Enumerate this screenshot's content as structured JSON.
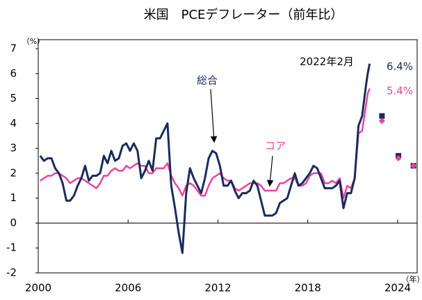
{
  "chart_data": {
    "type": "line",
    "title": "米国　PCEデフレーター（前年比）",
    "y_unit": "（%）",
    "x_unit": "（年）",
    "annotation": "2022年2月",
    "xlim": [
      2000,
      2025.3
    ],
    "xticks": [
      2000,
      2006,
      2012,
      2018,
      2024
    ],
    "ylim": [
      -2,
      7
    ],
    "yticks": [
      -2,
      -1,
      0,
      1,
      2,
      3,
      4,
      5,
      6,
      7
    ],
    "x": [
      2000.13,
      2000.38,
      2000.63,
      2000.88,
      2001.13,
      2001.38,
      2001.63,
      2001.88,
      2002.13,
      2002.38,
      2002.63,
      2002.88,
      2003.13,
      2003.38,
      2003.63,
      2003.88,
      2004.13,
      2004.38,
      2004.63,
      2004.88,
      2005.13,
      2005.38,
      2005.63,
      2005.88,
      2006.13,
      2006.38,
      2006.63,
      2006.88,
      2007.13,
      2007.38,
      2007.63,
      2007.88,
      2008.13,
      2008.38,
      2008.63,
      2008.88,
      2009.13,
      2009.38,
      2009.63,
      2009.88,
      2010.13,
      2010.38,
      2010.63,
      2010.88,
      2011.13,
      2011.38,
      2011.63,
      2011.88,
      2012.13,
      2012.38,
      2012.63,
      2012.88,
      2013.13,
      2013.38,
      2013.63,
      2013.88,
      2014.13,
      2014.38,
      2014.63,
      2014.88,
      2015.13,
      2015.38,
      2015.63,
      2015.88,
      2016.13,
      2016.38,
      2016.63,
      2016.88,
      2017.13,
      2017.38,
      2017.63,
      2017.88,
      2018.13,
      2018.38,
      2018.63,
      2018.88,
      2019.13,
      2019.38,
      2019.63,
      2019.88,
      2020.13,
      2020.38,
      2020.63,
      2020.88,
      2021.13,
      2021.38,
      2021.63,
      2021.88,
      2022.0,
      2022.13
    ],
    "series": [
      {
        "name": "総合",
        "color": "#1b2a5e",
        "end_label": "6.4%",
        "values": [
          2.7,
          2.5,
          2.6,
          2.6,
          2.2,
          2.0,
          1.6,
          0.9,
          0.9,
          1.1,
          1.5,
          1.8,
          2.3,
          1.7,
          1.9,
          1.9,
          2.0,
          2.7,
          2.4,
          2.9,
          2.5,
          2.6,
          3.1,
          3.2,
          2.9,
          3.2,
          2.9,
          1.8,
          2.1,
          2.5,
          2.1,
          3.4,
          3.4,
          3.7,
          4.0,
          1.5,
          0.6,
          -0.4,
          -1.2,
          1.2,
          2.2,
          1.8,
          1.5,
          1.2,
          1.8,
          2.6,
          2.9,
          2.8,
          2.3,
          1.5,
          1.5,
          1.7,
          1.3,
          1.0,
          1.2,
          1.2,
          1.3,
          1.7,
          1.5,
          0.9,
          0.3,
          0.3,
          0.3,
          0.4,
          0.8,
          0.9,
          1.0,
          1.5,
          2.0,
          1.5,
          1.6,
          1.8,
          2.0,
          2.3,
          2.2,
          1.8,
          1.4,
          1.4,
          1.4,
          1.5,
          1.7,
          0.6,
          1.2,
          1.2,
          1.8,
          3.9,
          4.3,
          5.5,
          6.0,
          6.4
        ]
      },
      {
        "name": "コア",
        "color": "#e8449a",
        "end_label": "5.4%",
        "values": [
          1.7,
          1.8,
          1.9,
          1.9,
          2.0,
          2.0,
          1.9,
          1.8,
          1.6,
          1.7,
          1.8,
          1.8,
          1.7,
          1.6,
          1.5,
          1.4,
          1.6,
          1.9,
          1.9,
          2.1,
          2.2,
          2.1,
          2.1,
          2.3,
          2.2,
          2.3,
          2.4,
          2.3,
          2.3,
          2.0,
          2.0,
          2.2,
          2.2,
          2.2,
          2.4,
          1.9,
          1.6,
          1.4,
          1.1,
          1.5,
          1.6,
          1.5,
          1.3,
          1.1,
          1.1,
          1.5,
          1.8,
          1.9,
          2.0,
          1.8,
          1.7,
          1.7,
          1.4,
          1.3,
          1.4,
          1.5,
          1.6,
          1.6,
          1.6,
          1.5,
          1.3,
          1.3,
          1.3,
          1.3,
          1.6,
          1.6,
          1.7,
          1.8,
          1.8,
          1.5,
          1.5,
          1.6,
          1.9,
          2.0,
          2.0,
          2.0,
          1.6,
          1.6,
          1.7,
          1.6,
          1.8,
          1.0,
          1.5,
          1.4,
          1.8,
          3.6,
          3.7,
          4.7,
          5.2,
          5.4
        ]
      }
    ],
    "projections": {
      "x": [
        2022.95,
        2024.05,
        2025.05
      ],
      "series": [
        {
          "color": "#1b2a5e",
          "marker": "square",
          "values": [
            4.3,
            2.7,
            2.3
          ]
        },
        {
          "color": "#e8449a",
          "marker": "diamond",
          "values": [
            4.1,
            2.6,
            2.3
          ]
        }
      ]
    }
  }
}
